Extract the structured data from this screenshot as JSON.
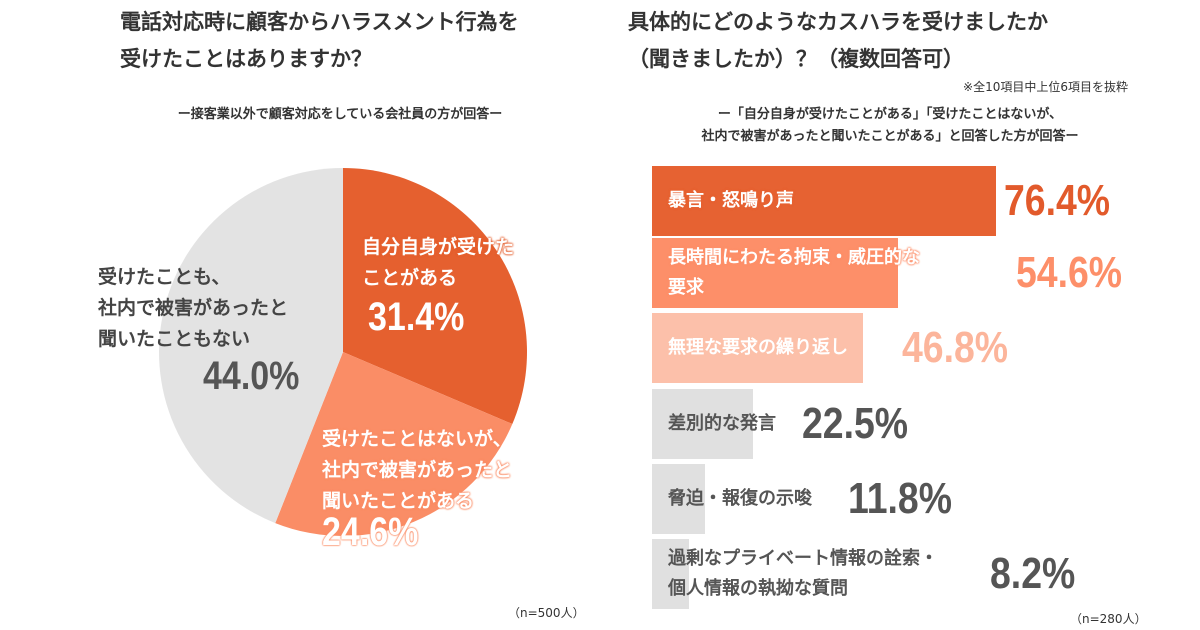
{
  "left": {
    "title_lines": [
      "電話対応時に顧客からハラスメント行為を",
      "受けたことはありますか？"
    ],
    "subtitle": "ー接客業以外で顧客対応をしている会社員の方が回答ー",
    "n": "（n=500人）"
  },
  "right": {
    "title_lines": [
      "具体的にどのようなカスハラを受けましたか",
      "（聞きましたか）？（複数回答可）"
    ],
    "note": "※全10項目中上位6項目を抜粋",
    "subtitle_lines": [
      "ー「自分自身が受けたことがある」「受けたことはないが、",
      "社内で被害があったと聞いたことがある」と回答した方が回答ー"
    ],
    "n": "（n=280人）"
  },
  "chart_data": [
    {
      "type": "pie",
      "title": "電話対応時に顧客からハラスメント行為を受けたことはありますか？",
      "slices": [
        {
          "label_lines": [
            "自分自身が受けた",
            "ことがある"
          ],
          "value": 31.4,
          "display": "31.4%",
          "color": "#e5602f"
        },
        {
          "label_lines": [
            "受けたことはないが、",
            "社内で被害があったと",
            "聞いたことがある"
          ],
          "value": 24.6,
          "display": "24.6%",
          "color": "#fa8d66"
        },
        {
          "label_lines": [
            "受けたことも、",
            "社内で被害があったと",
            "聞いたこともない"
          ],
          "value": 44.0,
          "display": "44.0%",
          "color": "#e3e3e3"
        }
      ]
    },
    {
      "type": "bar",
      "orientation": "horizontal",
      "title": "具体的にどのようなカスハラを受けましたか（聞きましたか）？（複数回答可）",
      "xlim": [
        0,
        100
      ],
      "bars": [
        {
          "label_lines": [
            "暴言・怒鳴り声"
          ],
          "value": 76.4,
          "display": "76.4%",
          "color": "#e66232",
          "text_color": "#e25a2b"
        },
        {
          "label_lines": [
            "長時間にわたる拘束・威圧的な",
            "要求"
          ],
          "value": 54.6,
          "display": "54.6%",
          "color": "#fd8f69",
          "text_color": "#fd8f69"
        },
        {
          "label_lines": [
            "無理な要求の繰り返し"
          ],
          "value": 46.8,
          "display": "46.8%",
          "color": "#fcc0aa",
          "text_color": "#fcb59b"
        },
        {
          "label_lines": [
            "差別的な発言"
          ],
          "value": 22.5,
          "display": "22.5%",
          "color": "#e0e0e0",
          "text_color": "#555555"
        },
        {
          "label_lines": [
            "脅迫・報復の示唆"
          ],
          "value": 11.8,
          "display": "11.8%",
          "color": "#e0e0e0",
          "text_color": "#555555"
        },
        {
          "label_lines": [
            "過剰なプライベート情報の詮索・",
            "個人情報の執拗な質問"
          ],
          "value": 8.2,
          "display": "8.2%",
          "color": "#e0e0e0",
          "text_color": "#555555"
        }
      ]
    }
  ]
}
